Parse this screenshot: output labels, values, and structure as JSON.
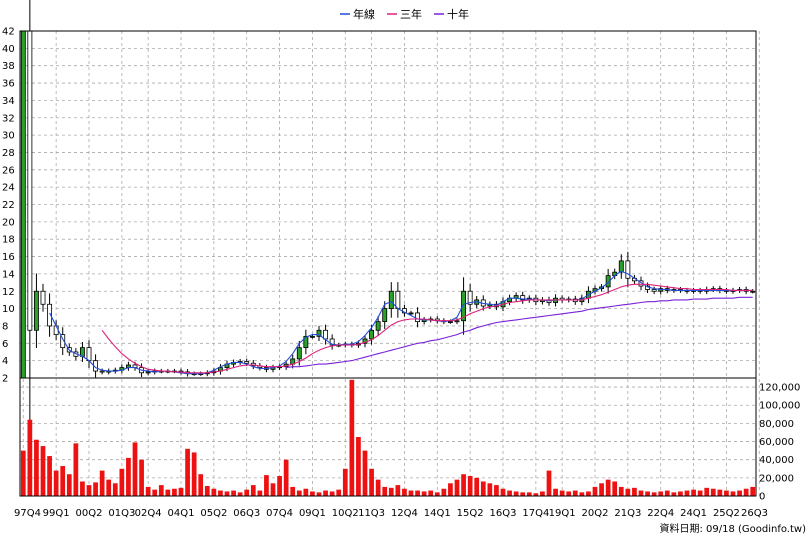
{
  "legend": [
    {
      "label": "年線",
      "color": "#1f4fd8"
    },
    {
      "label": "三年",
      "color": "#e0207a"
    },
    {
      "label": "十年",
      "color": "#7a22d8"
    }
  ],
  "footer_text": "資料日期: 09/18  (Goodinfo.tw)",
  "colors": {
    "up": "#2ca02c",
    "down": "#ffffff",
    "volume": "#ee1111",
    "grid": "#aaaaaa",
    "frame": "#000000"
  },
  "chart_data": [
    {
      "type": "candlestick",
      "ylim": [
        2,
        42
      ],
      "yticks": [
        2,
        4,
        6,
        8,
        10,
        12,
        14,
        16,
        18,
        20,
        22,
        24,
        26,
        28,
        30,
        32,
        34,
        36,
        38,
        40,
        42
      ],
      "xtick_labels": [
        "97Q4",
        "99Q1",
        "00Q2",
        "01Q3",
        "02Q4",
        "04Q1",
        "05Q2",
        "06Q3",
        "07Q4",
        "09Q1",
        "10Q2",
        "11Q3",
        "12Q4",
        "14Q1",
        "15Q2",
        "16Q3",
        "17Q4",
        "19Q1",
        "20Q2",
        "21Q3",
        "22Q4",
        "24Q1",
        "25Q2",
        "26Q3"
      ],
      "period_count": 112,
      "close": [
        42,
        7.5,
        12,
        10.5,
        8,
        7,
        5.5,
        5,
        4.5,
        5.5,
        4,
        2.8,
        2.7,
        2.8,
        2.9,
        3.2,
        3.5,
        3.2,
        2.6,
        2.7,
        2.8,
        2.8,
        2.8,
        2.8,
        2.7,
        2.5,
        2.5,
        2.5,
        2.6,
        2.8,
        3.2,
        3.6,
        3.8,
        3.9,
        3.7,
        3.4,
        3.2,
        3.0,
        3.2,
        3.3,
        3.6,
        4.2,
        5.5,
        6.8,
        6.8,
        7.5,
        6.5,
        5.8,
        5.8,
        5.9,
        5.8,
        6.0,
        6.5,
        7.5,
        8.5,
        10.0,
        12.0,
        10.0,
        9.5,
        9.5,
        8.5,
        8.7,
        8.8,
        8.6,
        8.5,
        8.5,
        8.6,
        12.0,
        10.5,
        11.0,
        10.3,
        10.5,
        10.2,
        10.8,
        11.2,
        11.5,
        11.0,
        11.2,
        10.8,
        11.0,
        10.7,
        11.2,
        11.0,
        11.1,
        10.8,
        11.2,
        12.0,
        12.3,
        12.5,
        13.8,
        14.2,
        15.5,
        13.5,
        13.2,
        12.6,
        12.2,
        12.0,
        12.3,
        12.1,
        12.2,
        12.1,
        12.0,
        12.1,
        12.0,
        12.2,
        12.3,
        12.1,
        12.0,
        12.1,
        12.2,
        12.0,
        12.0
      ],
      "line_year": [
        null,
        null,
        null,
        null,
        9.5,
        8.0,
        6.5,
        5.2,
        4.8,
        4.5,
        4.0,
        3.2,
        2.9,
        2.8,
        2.8,
        2.9,
        3.2,
        3.2,
        2.9,
        2.8,
        2.7,
        2.8,
        2.8,
        2.7,
        2.6,
        2.5,
        2.5,
        2.5,
        2.6,
        2.9,
        3.3,
        3.6,
        3.8,
        3.8,
        3.6,
        3.3,
        3.1,
        3.1,
        3.2,
        3.4,
        3.9,
        4.8,
        6.0,
        6.7,
        7.0,
        7.0,
        6.4,
        5.9,
        5.8,
        5.9,
        5.9,
        6.2,
        6.9,
        7.8,
        9.0,
        10.5,
        10.8,
        10.0,
        9.6,
        9.2,
        8.8,
        8.7,
        8.7,
        8.6,
        8.5,
        8.6,
        9.0,
        10.5,
        10.7,
        10.8,
        10.6,
        10.5,
        10.4,
        10.8,
        11.2,
        11.2,
        11.1,
        11.1,
        11.0,
        11.0,
        10.9,
        11.0,
        11.0,
        11.0,
        11.0,
        11.1,
        11.6,
        12.0,
        12.4,
        13.0,
        13.8,
        14.3,
        14.0,
        13.5,
        13.0,
        12.5,
        12.3,
        12.2,
        12.2,
        12.1,
        12.1,
        12.1,
        12.1,
        12.1,
        12.1,
        12.1,
        12.1,
        12.1,
        12.1,
        12.1,
        12.1,
        12.1
      ],
      "line_3y": [
        null,
        null,
        null,
        null,
        null,
        null,
        null,
        null,
        null,
        null,
        null,
        null,
        7.5,
        6.5,
        5.6,
        4.8,
        4.2,
        3.7,
        3.3,
        3.0,
        2.9,
        2.8,
        2.8,
        2.7,
        2.7,
        2.6,
        2.6,
        2.6,
        2.6,
        2.7,
        2.8,
        3.0,
        3.2,
        3.4,
        3.5,
        3.5,
        3.4,
        3.3,
        3.3,
        3.3,
        3.4,
        3.6,
        3.9,
        4.3,
        4.8,
        5.2,
        5.5,
        5.7,
        5.8,
        5.8,
        5.8,
        5.9,
        6.1,
        6.4,
        6.9,
        7.5,
        8.1,
        8.5,
        8.7,
        8.8,
        8.8,
        8.8,
        8.7,
        8.6,
        8.6,
        8.6,
        8.7,
        9.0,
        9.4,
        9.7,
        10.0,
        10.2,
        10.3,
        10.5,
        10.7,
        10.8,
        10.9,
        11.0,
        11.0,
        11.0,
        11.0,
        11.0,
        11.0,
        11.0,
        11.0,
        11.0,
        11.2,
        11.4,
        11.6,
        11.9,
        12.2,
        12.5,
        12.7,
        12.8,
        12.8,
        12.8,
        12.7,
        12.6,
        12.5,
        12.4,
        12.3,
        12.3,
        12.2,
        12.2,
        12.2,
        12.2,
        12.2,
        12.2,
        12.1,
        12.1,
        12.1,
        12.1
      ],
      "line_10y": [
        null,
        null,
        null,
        null,
        null,
        null,
        null,
        null,
        null,
        null,
        null,
        null,
        null,
        null,
        null,
        null,
        null,
        null,
        null,
        null,
        null,
        null,
        null,
        null,
        null,
        null,
        null,
        null,
        null,
        null,
        null,
        null,
        null,
        null,
        null,
        null,
        null,
        null,
        null,
        null,
        3.2,
        3.3,
        3.3,
        3.4,
        3.5,
        3.6,
        3.6,
        3.7,
        3.8,
        3.9,
        4.0,
        4.2,
        4.4,
        4.6,
        4.8,
        5.0,
        5.2,
        5.4,
        5.6,
        5.8,
        6.0,
        6.1,
        6.3,
        6.4,
        6.6,
        6.8,
        7.0,
        7.3,
        7.5,
        7.8,
        8.0,
        8.2,
        8.4,
        8.5,
        8.6,
        8.7,
        8.8,
        8.9,
        9.0,
        9.1,
        9.2,
        9.3,
        9.4,
        9.5,
        9.6,
        9.7,
        9.9,
        10.0,
        10.1,
        10.2,
        10.3,
        10.4,
        10.5,
        10.6,
        10.7,
        10.8,
        10.8,
        10.9,
        10.9,
        11.0,
        11.0,
        11.0,
        11.1,
        11.1,
        11.1,
        11.2,
        11.2,
        11.2,
        11.2,
        11.3,
        11.3,
        11.3
      ]
    },
    {
      "type": "bar",
      "series": "volume",
      "ylim": [
        0,
        130000
      ],
      "yticks": [
        0,
        20000,
        40000,
        60000,
        80000,
        100000,
        120000
      ],
      "ytick_labels": [
        "0",
        "20,000",
        "40,000",
        "60,000",
        "80,000",
        "100,000",
        "120,000"
      ],
      "values": [
        50000,
        84000,
        62000,
        55000,
        44000,
        28000,
        33000,
        24000,
        58000,
        16000,
        12000,
        15000,
        28000,
        18000,
        14000,
        30000,
        42000,
        59000,
        40000,
        10000,
        7000,
        12000,
        7000,
        8000,
        9000,
        52000,
        48000,
        24000,
        11000,
        8000,
        6000,
        5000,
        6000,
        4000,
        7000,
        12000,
        6000,
        23000,
        14000,
        22000,
        40000,
        10000,
        6000,
        8000,
        5000,
        4000,
        6000,
        5000,
        7000,
        30000,
        128000,
        65000,
        50000,
        30000,
        18000,
        10000,
        9000,
        12000,
        8000,
        6000,
        6000,
        5000,
        6000,
        4000,
        8000,
        14000,
        18000,
        24000,
        22000,
        20000,
        16000,
        14000,
        12000,
        8000,
        6000,
        5000,
        4000,
        4000,
        3000,
        5000,
        28000,
        8000,
        6000,
        5000,
        6000,
        4000,
        5000,
        10000,
        14000,
        18000,
        16000,
        10000,
        8000,
        9000,
        6000,
        5000,
        4000,
        5000,
        6000,
        4000,
        5000,
        6000,
        7000,
        6000,
        9000,
        8000,
        7000,
        6000,
        5000,
        6000,
        8000,
        10000
      ]
    }
  ]
}
